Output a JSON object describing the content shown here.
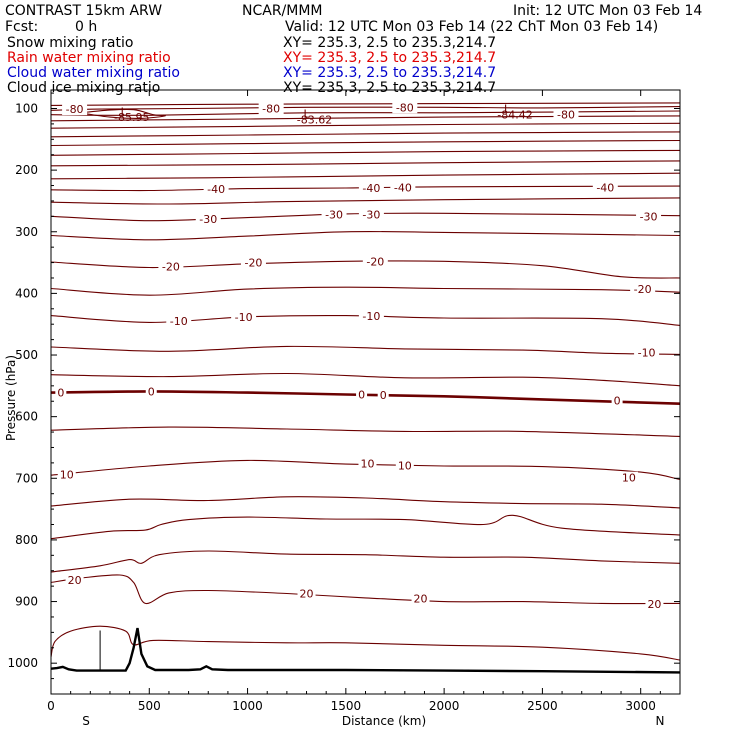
{
  "header": {
    "title": "CONTRAST 15km ARW",
    "center": "NCAR/MMM",
    "init": "Init: 12 UTC Mon 03 Feb 14",
    "fcst_label": "Fcst:",
    "fcst_value": "0 h",
    "valid": "Valid: 12 UTC Mon 03 Feb 14 (22 ChT Mon 03 Feb 14)"
  },
  "fields": [
    {
      "name": "Snow mixing ratio",
      "xy": "XY= 235.3,  2.5 to 235.3,214.7",
      "color": "#000000"
    },
    {
      "name": "Rain water mixing ratio",
      "xy": "XY= 235.3,  2.5 to 235.3,214.7",
      "color": "#e00000"
    },
    {
      "name": "Cloud water mixing ratio",
      "xy": "XY= 235.3,  2.5 to 235.3,214.7",
      "color": "#0000cc"
    },
    {
      "name": "Cloud ice mixing ratio",
      "xy": "XY= 235.3,  2.5 to 235.3,214.7",
      "color": "#000000"
    }
  ],
  "chart_data": {
    "type": "line",
    "xlabel": "Distance (km)",
    "ylabel": "Pressure (hPa)",
    "xlim": [
      0,
      3200
    ],
    "ylim": [
      1050,
      70
    ],
    "x_ticks": [
      0,
      500,
      1000,
      1500,
      2000,
      2500,
      3000
    ],
    "x_tick_labels": [
      "0",
      "500",
      "1000",
      "1500",
      "2000",
      "2500",
      "3000"
    ],
    "y_ticks": [
      100,
      200,
      300,
      400,
      500,
      600,
      700,
      800,
      900,
      1000
    ],
    "y_tick_labels": [
      "100",
      "200",
      "300",
      "400",
      "500",
      "600",
      "700",
      "800",
      "900",
      "1000"
    ],
    "left_end_label": "S",
    "right_end_label": "N",
    "contour_color": "#6b0000",
    "terrain_color": "#000000",
    "contours": [
      {
        "value": -80,
        "points": [
          [
            0,
            95
          ],
          [
            1000,
            93
          ],
          [
            2000,
            92
          ],
          [
            3200,
            91
          ]
        ]
      },
      {
        "value": -80,
        "points": [
          [
            0,
            103
          ],
          [
            250,
            101
          ],
          [
            700,
            100
          ],
          [
            1300,
            98
          ],
          [
            2000,
            98
          ],
          [
            2500,
            99
          ],
          [
            3200,
            97
          ]
        ]
      },
      {
        "value": -80,
        "points": [
          [
            0,
            110
          ],
          [
            500,
            111
          ],
          [
            1300,
            107
          ],
          [
            2000,
            107
          ],
          [
            3200,
            104
          ]
        ]
      },
      {
        "value": -80,
        "points": [
          [
            0,
            120
          ],
          [
            1000,
            117
          ],
          [
            2000,
            114
          ],
          [
            3200,
            112
          ]
        ]
      },
      {
        "value": null,
        "points": [
          [
            0,
            132
          ],
          [
            1000,
            129
          ],
          [
            2000,
            126
          ],
          [
            3200,
            124
          ]
        ]
      },
      {
        "value": null,
        "points": [
          [
            0,
            146
          ],
          [
            1000,
            143
          ],
          [
            2000,
            140
          ],
          [
            3200,
            138
          ]
        ]
      },
      {
        "value": null,
        "points": [
          [
            0,
            160
          ],
          [
            1000,
            157
          ],
          [
            2000,
            154
          ],
          [
            3200,
            152
          ]
        ]
      },
      {
        "value": null,
        "points": [
          [
            0,
            176
          ],
          [
            1000,
            173
          ],
          [
            2000,
            170
          ],
          [
            3200,
            168
          ]
        ]
      },
      {
        "value": null,
        "points": [
          [
            0,
            193
          ],
          [
            1000,
            191
          ],
          [
            2000,
            188
          ],
          [
            3200,
            185
          ]
        ]
      },
      {
        "value": null,
        "points": [
          [
            0,
            214
          ],
          [
            600,
            213
          ],
          [
            1200,
            211
          ],
          [
            2000,
            208
          ],
          [
            3200,
            205
          ]
        ]
      },
      {
        "value": -40,
        "points": [
          [
            0,
            232
          ],
          [
            500,
            233
          ],
          [
            1000,
            230
          ],
          [
            1500,
            229
          ],
          [
            2000,
            227
          ],
          [
            3200,
            226
          ]
        ]
      },
      {
        "value": -40,
        "points": [
          [
            0,
            252
          ],
          [
            600,
            255
          ],
          [
            1200,
            251
          ],
          [
            2000,
            248
          ],
          [
            3200,
            245
          ]
        ]
      },
      {
        "value": -30,
        "points": [
          [
            0,
            275
          ],
          [
            500,
            282
          ],
          [
            1000,
            277
          ],
          [
            1500,
            271
          ],
          [
            2000,
            270
          ],
          [
            3200,
            274
          ]
        ]
      },
      {
        "value": -30,
        "points": [
          [
            0,
            306
          ],
          [
            500,
            313
          ],
          [
            1000,
            307
          ],
          [
            1500,
            300
          ],
          [
            2000,
            301
          ],
          [
            3200,
            306
          ]
        ]
      },
      {
        "value": -20,
        "points": [
          [
            0,
            349
          ],
          [
            500,
            358
          ],
          [
            1000,
            352
          ],
          [
            1500,
            348
          ],
          [
            2000,
            348
          ],
          [
            2500,
            355
          ],
          [
            2900,
            373
          ],
          [
            3200,
            375
          ]
        ]
      },
      {
        "value": -20,
        "points": [
          [
            0,
            392
          ],
          [
            500,
            403
          ],
          [
            1000,
            393
          ],
          [
            1500,
            390
          ],
          [
            2000,
            392
          ],
          [
            2800,
            394
          ],
          [
            3200,
            398
          ]
        ]
      },
      {
        "value": -10,
        "points": [
          [
            0,
            436
          ],
          [
            500,
            447
          ],
          [
            1000,
            438
          ],
          [
            1500,
            436
          ],
          [
            2000,
            440
          ],
          [
            2800,
            441
          ],
          [
            3200,
            452
          ]
        ]
      },
      {
        "value": -10,
        "points": [
          [
            0,
            487
          ],
          [
            600,
            494
          ],
          [
            1200,
            486
          ],
          [
            1800,
            490
          ],
          [
            2400,
            492
          ],
          [
            2800,
            497
          ],
          [
            3200,
            499
          ]
        ]
      },
      {
        "value": null,
        "points": [
          [
            0,
            532
          ],
          [
            600,
            535
          ],
          [
            1200,
            530
          ],
          [
            1800,
            537
          ],
          [
            2400,
            536
          ],
          [
            2800,
            541
          ],
          [
            3200,
            550
          ]
        ]
      },
      {
        "value": 0,
        "major": true,
        "points": [
          [
            0,
            561
          ],
          [
            500,
            559
          ],
          [
            1000,
            561
          ],
          [
            1500,
            564
          ],
          [
            2000,
            567
          ],
          [
            2500,
            572
          ],
          [
            3200,
            579
          ]
        ]
      },
      {
        "value": null,
        "points": [
          [
            0,
            622
          ],
          [
            600,
            617
          ],
          [
            1200,
            620
          ],
          [
            1800,
            624
          ],
          [
            2400,
            624
          ],
          [
            3200,
            632
          ]
        ]
      },
      {
        "value": 10,
        "points": [
          [
            0,
            695
          ],
          [
            500,
            680
          ],
          [
            1000,
            671
          ],
          [
            1500,
            677
          ],
          [
            2000,
            680
          ],
          [
            2500,
            681
          ],
          [
            3000,
            690
          ],
          [
            3200,
            702
          ]
        ]
      },
      {
        "value": 10,
        "points": [
          [
            0,
            745
          ],
          [
            400,
            734
          ],
          [
            800,
            736
          ],
          [
            1200,
            730
          ],
          [
            1600,
            732
          ],
          [
            2000,
            738
          ],
          [
            2400,
            741
          ],
          [
            2800,
            742
          ],
          [
            3200,
            748
          ]
        ]
      },
      {
        "value": null,
        "points": [
          [
            0,
            798
          ],
          [
            300,
            786
          ],
          [
            480,
            784
          ],
          [
            560,
            775
          ],
          [
            700,
            767
          ],
          [
            1000,
            763
          ],
          [
            1400,
            766
          ],
          [
            1800,
            767
          ],
          [
            2200,
            775
          ],
          [
            2350,
            760
          ],
          [
            2600,
            781
          ],
          [
            3200,
            792
          ]
        ]
      },
      {
        "value": null,
        "points": [
          [
            0,
            852
          ],
          [
            250,
            842
          ],
          [
            400,
            832
          ],
          [
            460,
            838
          ],
          [
            550,
            824
          ],
          [
            800,
            818
          ],
          [
            1200,
            823
          ],
          [
            1600,
            824
          ],
          [
            2000,
            828
          ],
          [
            2400,
            828
          ],
          [
            2800,
            834
          ],
          [
            3200,
            838
          ]
        ]
      },
      {
        "value": 20,
        "points": [
          [
            0,
            869
          ],
          [
            150,
            862
          ],
          [
            350,
            857
          ],
          [
            420,
            869
          ],
          [
            480,
            903
          ],
          [
            600,
            886
          ],
          [
            800,
            882
          ],
          [
            1200,
            887
          ],
          [
            1600,
            894
          ],
          [
            2000,
            900
          ],
          [
            2400,
            900
          ],
          [
            2800,
            903
          ],
          [
            3200,
            903
          ]
        ]
      },
      {
        "value": 20,
        "points": [
          [
            0,
            990
          ],
          [
            20,
            965
          ],
          [
            100,
            948
          ],
          [
            250,
            940
          ],
          [
            380,
            948
          ],
          [
            420,
            970
          ],
          [
            520,
            963
          ],
          [
            800,
            965
          ],
          [
            1200,
            967
          ],
          [
            1500,
            967
          ],
          [
            2000,
            971
          ],
          [
            2500,
            974
          ],
          [
            3000,
            985
          ],
          [
            3200,
            995
          ]
        ]
      }
    ],
    "contour_labels": [
      {
        "text": "-80",
        "x": 120,
        "p": 101
      },
      {
        "text": "-80",
        "x": 1120,
        "p": 100
      },
      {
        "text": "-80",
        "x": 1800,
        "p": 98
      },
      {
        "text": "-80",
        "x": 2620,
        "p": 110
      },
      {
        "text": "-40",
        "x": 840,
        "p": 231
      },
      {
        "text": "-40",
        "x": 1630,
        "p": 229
      },
      {
        "text": "-40",
        "x": 1790,
        "p": 228
      },
      {
        "text": "-40",
        "x": 2820,
        "p": 228
      },
      {
        "text": "-30",
        "x": 800,
        "p": 279
      },
      {
        "text": "-30",
        "x": 1440,
        "p": 272
      },
      {
        "text": "-30",
        "x": 1630,
        "p": 272
      },
      {
        "text": "-30",
        "x": 3040,
        "p": 275
      },
      {
        "text": "-20",
        "x": 610,
        "p": 356
      },
      {
        "text": "-20",
        "x": 1030,
        "p": 350
      },
      {
        "text": "-20",
        "x": 1650,
        "p": 348
      },
      {
        "text": "-20",
        "x": 3010,
        "p": 393
      },
      {
        "text": "-10",
        "x": 650,
        "p": 445
      },
      {
        "text": "-10",
        "x": 980,
        "p": 438
      },
      {
        "text": "-10",
        "x": 1630,
        "p": 437
      },
      {
        "text": "-10",
        "x": 3030,
        "p": 496
      },
      {
        "text": "0",
        "x": 50,
        "p": 561
      },
      {
        "text": "0",
        "x": 510,
        "p": 559
      },
      {
        "text": "0",
        "x": 1580,
        "p": 564
      },
      {
        "text": "0",
        "x": 1690,
        "p": 565
      },
      {
        "text": "0",
        "x": 2880,
        "p": 574
      },
      {
        "text": "10",
        "x": 80,
        "p": 694
      },
      {
        "text": "10",
        "x": 1610,
        "p": 676
      },
      {
        "text": "10",
        "x": 1800,
        "p": 679
      },
      {
        "text": "10",
        "x": 2940,
        "p": 699
      },
      {
        "text": "20",
        "x": 120,
        "p": 865
      },
      {
        "text": "20",
        "x": 1300,
        "p": 887
      },
      {
        "text": "20",
        "x": 1880,
        "p": 895
      },
      {
        "text": "20",
        "x": 3070,
        "p": 904
      }
    ],
    "low_centers": [
      {
        "label": "L",
        "value": "-85.95",
        "x": 370,
        "p": 105,
        "value_p": 114
      },
      {
        "label": "L",
        "value": "-83.62",
        "x": 1300,
        "p": 108,
        "value_p": 118
      },
      {
        "label": "L",
        "value": "-84.42",
        "x": 2320,
        "p": 100,
        "value_p": 110
      }
    ],
    "terrain": [
      [
        0,
        1009
      ],
      [
        30,
        1008
      ],
      [
        60,
        1006
      ],
      [
        90,
        1010
      ],
      [
        130,
        1012
      ],
      [
        200,
        1012
      ],
      [
        300,
        1012
      ],
      [
        380,
        1012
      ],
      [
        400,
        1000
      ],
      [
        420,
        975
      ],
      [
        440,
        943
      ],
      [
        460,
        985
      ],
      [
        490,
        1005
      ],
      [
        530,
        1011
      ],
      [
        700,
        1011
      ],
      [
        760,
        1010
      ],
      [
        790,
        1005
      ],
      [
        820,
        1010
      ],
      [
        900,
        1011
      ],
      [
        1500,
        1011
      ],
      [
        2000,
        1012
      ],
      [
        2500,
        1013
      ],
      [
        3200,
        1015
      ]
    ],
    "cloud_outline": [
      [
        250,
        947
      ],
      [
        250,
        1011
      ]
    ],
    "small_low_contour": [
      [
        150,
        107
      ],
      [
        280,
        103
      ],
      [
        420,
        102
      ],
      [
        520,
        110
      ],
      [
        580,
        112
      ],
      [
        460,
        116
      ],
      [
        300,
        114
      ],
      [
        150,
        107
      ]
    ]
  }
}
